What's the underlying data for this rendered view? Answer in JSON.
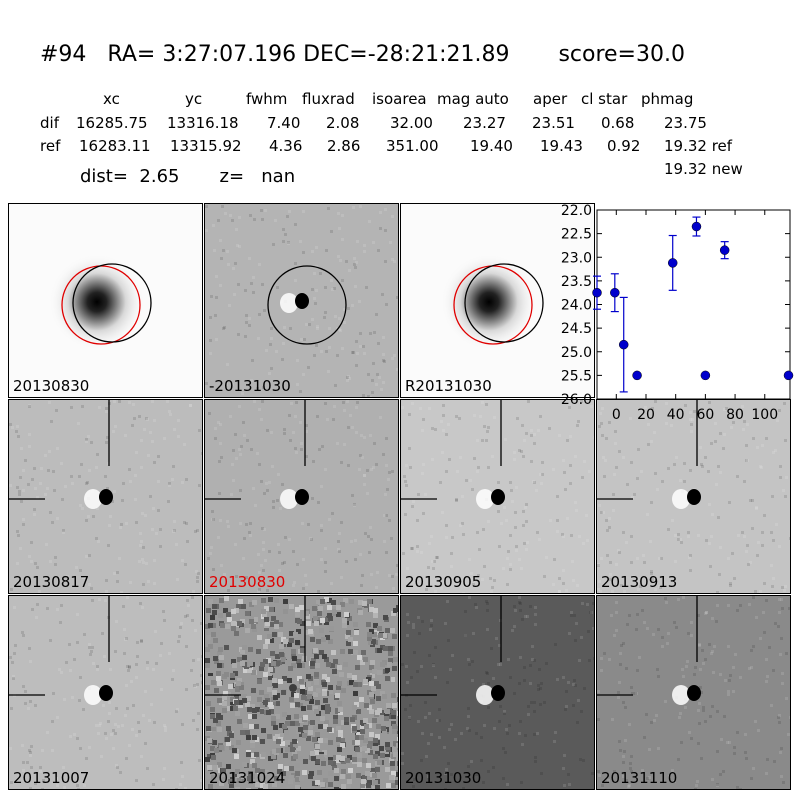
{
  "header": {
    "id": "#94",
    "ra_label": "RA=",
    "ra": "3:27:07.196",
    "dec_label": "DEC=",
    "dec": "-28:21:21.89",
    "score_label": "score=",
    "score": "30.0"
  },
  "table": {
    "columns": [
      "xc",
      "yc",
      "fwhm",
      "fluxrad",
      "isoarea",
      "mag auto",
      "aper",
      "cl star",
      "phmag"
    ],
    "rows": [
      {
        "label": "dif",
        "values": [
          "16285.75",
          "13316.18",
          "7.40",
          "2.08",
          "32.00",
          "23.27",
          "23.51",
          "0.68",
          "23.75"
        ]
      },
      {
        "label": "ref",
        "values": [
          "16283.11",
          "13315.92",
          "4.36",
          "2.86",
          "351.00",
          "19.40",
          "19.43",
          "0.92",
          "19.32 ref"
        ]
      }
    ],
    "extra_phmag": "19.32 new"
  },
  "dist": {
    "label": "dist=",
    "value": "2.65",
    "z_label": "z=",
    "z_value": "nan"
  },
  "stamps": [
    {
      "label": "20130830",
      "kind": "template",
      "bg": "#fbfbfb",
      "circles": "both"
    },
    {
      "label": "-20131030",
      "kind": "diff",
      "bg": "#b4b4b4",
      "circles": "black"
    },
    {
      "label": "R20131030",
      "kind": "template",
      "bg": "#fbfbfb",
      "circles": "both"
    },
    {
      "label": "20130817",
      "kind": "diff-cross",
      "bg": "#bcbcbc"
    },
    {
      "label": "20130830",
      "kind": "diff-cross",
      "bg": "#b0b0b0",
      "highlight": true
    },
    {
      "label": "20130905",
      "kind": "diff-cross",
      "bg": "#c8c8c8"
    },
    {
      "label": "20130913",
      "kind": "diff-cross",
      "bg": "#c4c4c4"
    },
    {
      "label": "20131007",
      "kind": "diff-cross",
      "bg": "#bdbdbd"
    },
    {
      "label": "20131024",
      "kind": "noise-cross",
      "bg": "#9a9a9a"
    },
    {
      "label": "20131030",
      "kind": "diff-cross",
      "bg": "#5a5a5a"
    },
    {
      "label": "20131110",
      "kind": "diff-cross",
      "bg": "#8a8a8a"
    }
  ],
  "chart_data": {
    "type": "scatter",
    "title": "",
    "xlabel": "",
    "ylabel": "",
    "xlim": [
      -13,
      117
    ],
    "ylim": [
      26.0,
      22.0
    ],
    "y_inverted": true,
    "x_ticks": [
      "0",
      "20",
      "40",
      "60",
      "80",
      "100"
    ],
    "y_ticks": [
      "22.0",
      "22.5",
      "23.0",
      "23.5",
      "24.0",
      "24.5",
      "25.0",
      "25.5",
      "26.0"
    ],
    "marker_color": "#0000cc",
    "points": [
      {
        "x": -13,
        "y": 23.75,
        "err": 0.35
      },
      {
        "x": -1,
        "y": 23.75,
        "err": 0.4
      },
      {
        "x": 5,
        "y": 24.85,
        "err": 1.0
      },
      {
        "x": 14,
        "y": 25.5,
        "upper_limit": true
      },
      {
        "x": 38,
        "y": 23.12,
        "err": 0.58
      },
      {
        "x": 54,
        "y": 22.35,
        "err": 0.2
      },
      {
        "x": 60,
        "y": 25.5,
        "upper_limit": true
      },
      {
        "x": 73,
        "y": 22.85,
        "err": 0.18
      },
      {
        "x": 116,
        "y": 25.5,
        "upper_limit": true
      }
    ]
  }
}
